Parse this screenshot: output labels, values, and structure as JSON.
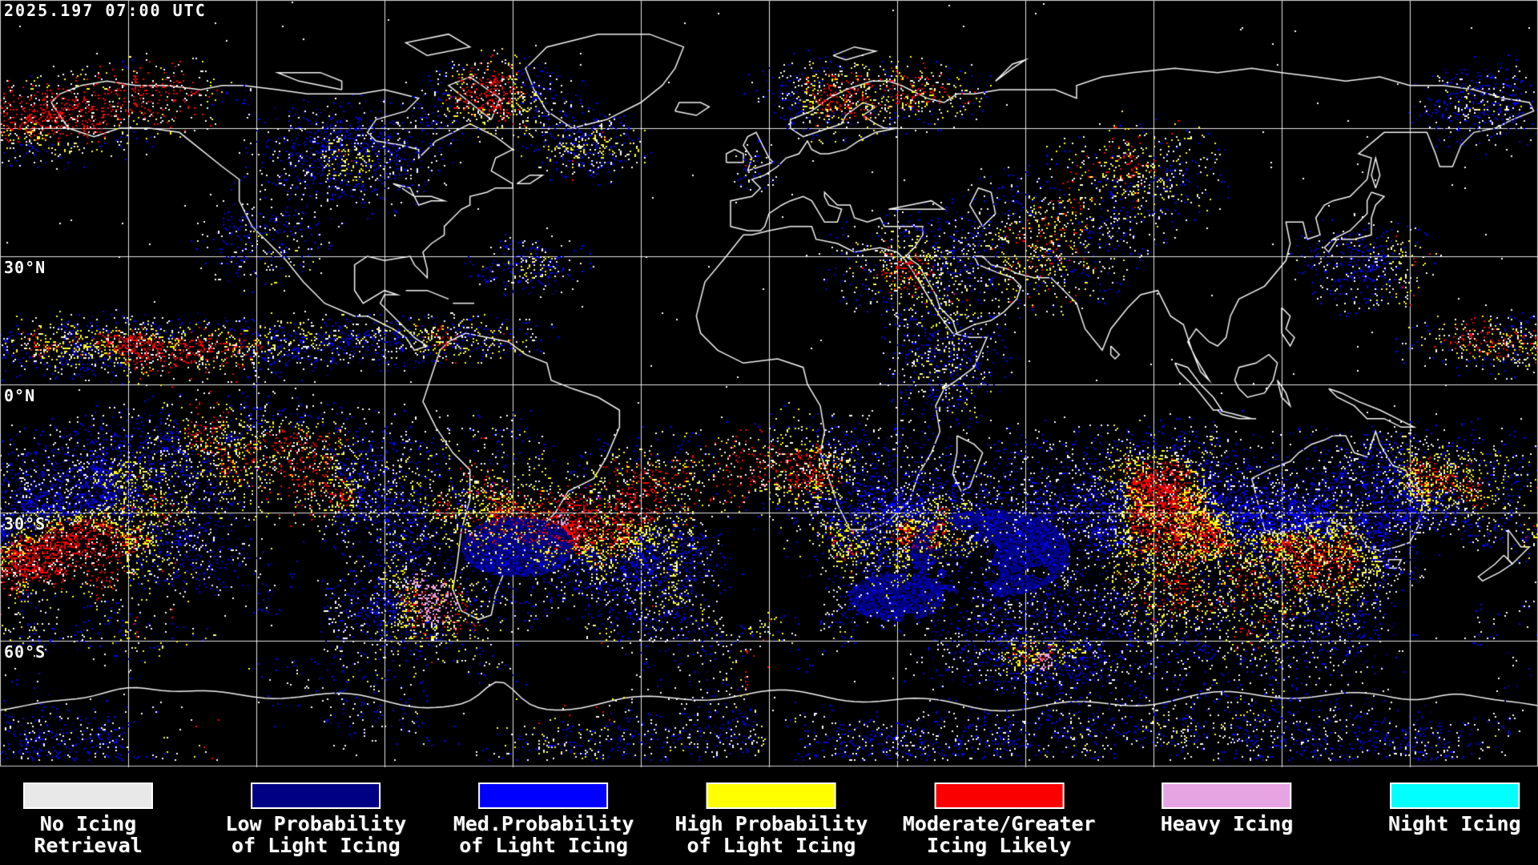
{
  "header": {
    "timestamp": "2025.197 07:00 UTC"
  },
  "map": {
    "latitude_labels": [
      {
        "label": "30°N",
        "lat": 30
      },
      {
        "label": "0°N",
        "lat": 0
      },
      {
        "label": "30°S",
        "lat": -30
      },
      {
        "label": "60°S",
        "lat": -60
      }
    ],
    "grid": {
      "lon_spacing_deg": 30,
      "lat_spacing_deg": 30
    },
    "background_color": "#000000",
    "coastline_color": "#f4f4f4",
    "grid_color": "#ffffff",
    "border_color": "#cccccc",
    "palette": {
      "no_icing_retrieval": "#ffffff",
      "low_prob_light_icing": "#000088",
      "med_prob_light_icing": "#0000fe",
      "high_prob_light_icing": "#ffff00",
      "moderate_greater_icing": "#fb0000",
      "heavy_icing": "#f0a2e2",
      "night_icing": "#00ffff"
    }
  },
  "legend": {
    "swatch_border_color": "#ffffff",
    "items": [
      {
        "label_lines": [
          "No Icing",
          "Retrieval"
        ],
        "color": "#e8e8e8"
      },
      {
        "label_lines": [
          "Low Probability",
          "of Light Icing"
        ],
        "color": "#000085"
      },
      {
        "label_lines": [
          "Med.Probability",
          "of Light Icing"
        ],
        "color": "#0000fe"
      },
      {
        "label_lines": [
          "High Probability",
          "of Light Icing"
        ],
        "color": "#ffff00"
      },
      {
        "label_lines": [
          "Moderate/Greater",
          "Icing Likely"
        ],
        "color": "#fb0000"
      },
      {
        "label_lines": [
          "Heavy Icing"
        ],
        "color": "#e7a4e2"
      },
      {
        "label_lines": [
          "Night Icing"
        ],
        "color": "#00ffff"
      }
    ]
  }
}
